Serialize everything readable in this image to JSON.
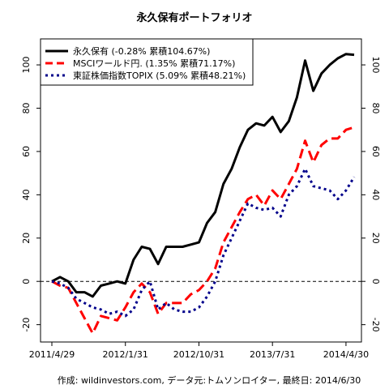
{
  "chart_data": {
    "type": "line",
    "title": "永久保有ポートフォリオ",
    "footer": "作成: wildinvestors.com, データ元:トムソンロイター, 最終日: 2014/6/30",
    "xlabel": "",
    "ylabel": "",
    "x_tick_labels": [
      "2011/4/29",
      "2012/1/31",
      "2012/10/31",
      "2013/7/31",
      "2014/4/30"
    ],
    "x_tick_index": [
      0,
      9,
      18,
      27,
      36
    ],
    "ylim": [
      -28,
      112
    ],
    "y_ticks": [
      -20,
      0,
      20,
      40,
      60,
      80,
      100
    ],
    "reference_line": 0,
    "legend_position": "top-left",
    "series": [
      {
        "name": "永久保有 (-0.28% 累積104.67%)",
        "color": "#000000",
        "style": "solid",
        "values": [
          0,
          2,
          0,
          -5,
          -5,
          -7,
          -2,
          -1,
          0,
          -1,
          10,
          16,
          15,
          8,
          16,
          16,
          16,
          17,
          18,
          27,
          32,
          45,
          52,
          62,
          70,
          73,
          72,
          76,
          69,
          74,
          85,
          102,
          88,
          96,
          100,
          103,
          105,
          104.67
        ]
      },
      {
        "name": "MSCIワールド円. (1.35% 累積71.17%)",
        "color": "#ff0000",
        "style": "dashed",
        "values": [
          0,
          -2,
          -3,
          -10,
          -17,
          -24,
          -16,
          -17,
          -18,
          -12,
          -5,
          -1,
          -5,
          -15,
          -10,
          -10,
          -10,
          -6,
          -4,
          0,
          6,
          18,
          25,
          32,
          38,
          40,
          35,
          42,
          38,
          45,
          52,
          65,
          55,
          63,
          66,
          66,
          70,
          71.17
        ]
      },
      {
        "name": "東証株価指数TOPIX (5.09% 累積48.21%)",
        "color": "#00008b",
        "style": "dotted",
        "values": [
          0,
          -1,
          -3,
          -8,
          -10,
          -12,
          -13,
          -15,
          -14,
          -16,
          -13,
          -4,
          0,
          -13,
          -10,
          -13,
          -14,
          -14,
          -12,
          -7,
          0,
          12,
          20,
          28,
          36,
          34,
          33,
          34,
          30,
          40,
          44,
          52,
          44,
          43,
          42,
          38,
          42,
          48.21
        ]
      }
    ]
  }
}
